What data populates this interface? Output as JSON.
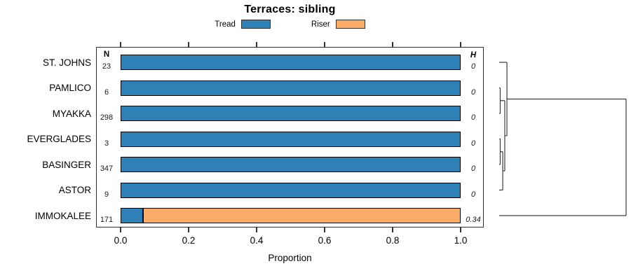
{
  "chart_data": {
    "type": "bar",
    "orientation": "horizontal",
    "stacked": true,
    "title": "Terraces: sibling",
    "xlabel": "Proportion",
    "xlim": [
      0,
      1
    ],
    "x_ticks": [
      0.0,
      0.2,
      0.4,
      0.6,
      0.8,
      1.0
    ],
    "x_tick_labels": [
      "0.0",
      "0.2",
      "0.4",
      "0.6",
      "0.8",
      "1.0"
    ],
    "grid": false,
    "legend_position": "top-center",
    "categories": [
      "ST. JOHNS",
      "PAMLICO",
      "MYAKKA",
      "EVERGLADES",
      "BASINGER",
      "ASTOR",
      "IMMOKALEE"
    ],
    "series": [
      {
        "name": "Tread",
        "color": "#3080B8",
        "values": [
          1.0,
          1.0,
          1.0,
          1.0,
          1.0,
          1.0,
          0.065
        ]
      },
      {
        "name": "Riser",
        "color": "#FBAD68",
        "values": [
          0.0,
          0.0,
          0.0,
          0.0,
          0.0,
          0.0,
          0.935
        ]
      }
    ],
    "n_header": "N",
    "h_header": "H",
    "n_values": [
      "23",
      "6",
      "298",
      "3",
      "347",
      "9",
      "171"
    ],
    "h_values": [
      "0",
      "0",
      "0",
      "0",
      "0",
      "0",
      "0.34"
    ],
    "dendrogram": {
      "side": "right",
      "leaves": [
        "ST. JOHNS",
        "PAMLICO",
        "MYAKKA",
        "EVERGLADES",
        "BASINGER",
        "ASTOR",
        "IMMOKALEE"
      ],
      "merges": [
        {
          "a": "PAMLICO",
          "b": "MYAKKA",
          "height": 0.008
        },
        {
          "a": "EVERGLADES",
          "b": "BASINGER",
          "height": 0.008
        },
        {
          "a": "node1",
          "b": "ASTOR",
          "height": 0.028
        },
        {
          "a": "node0",
          "b": "node2",
          "height": 0.044
        },
        {
          "a": "ST. JOHNS",
          "b": "node3",
          "height": 0.061
        },
        {
          "a": "node4",
          "b": "IMMOKALEE",
          "height": 1.0
        }
      ]
    }
  }
}
